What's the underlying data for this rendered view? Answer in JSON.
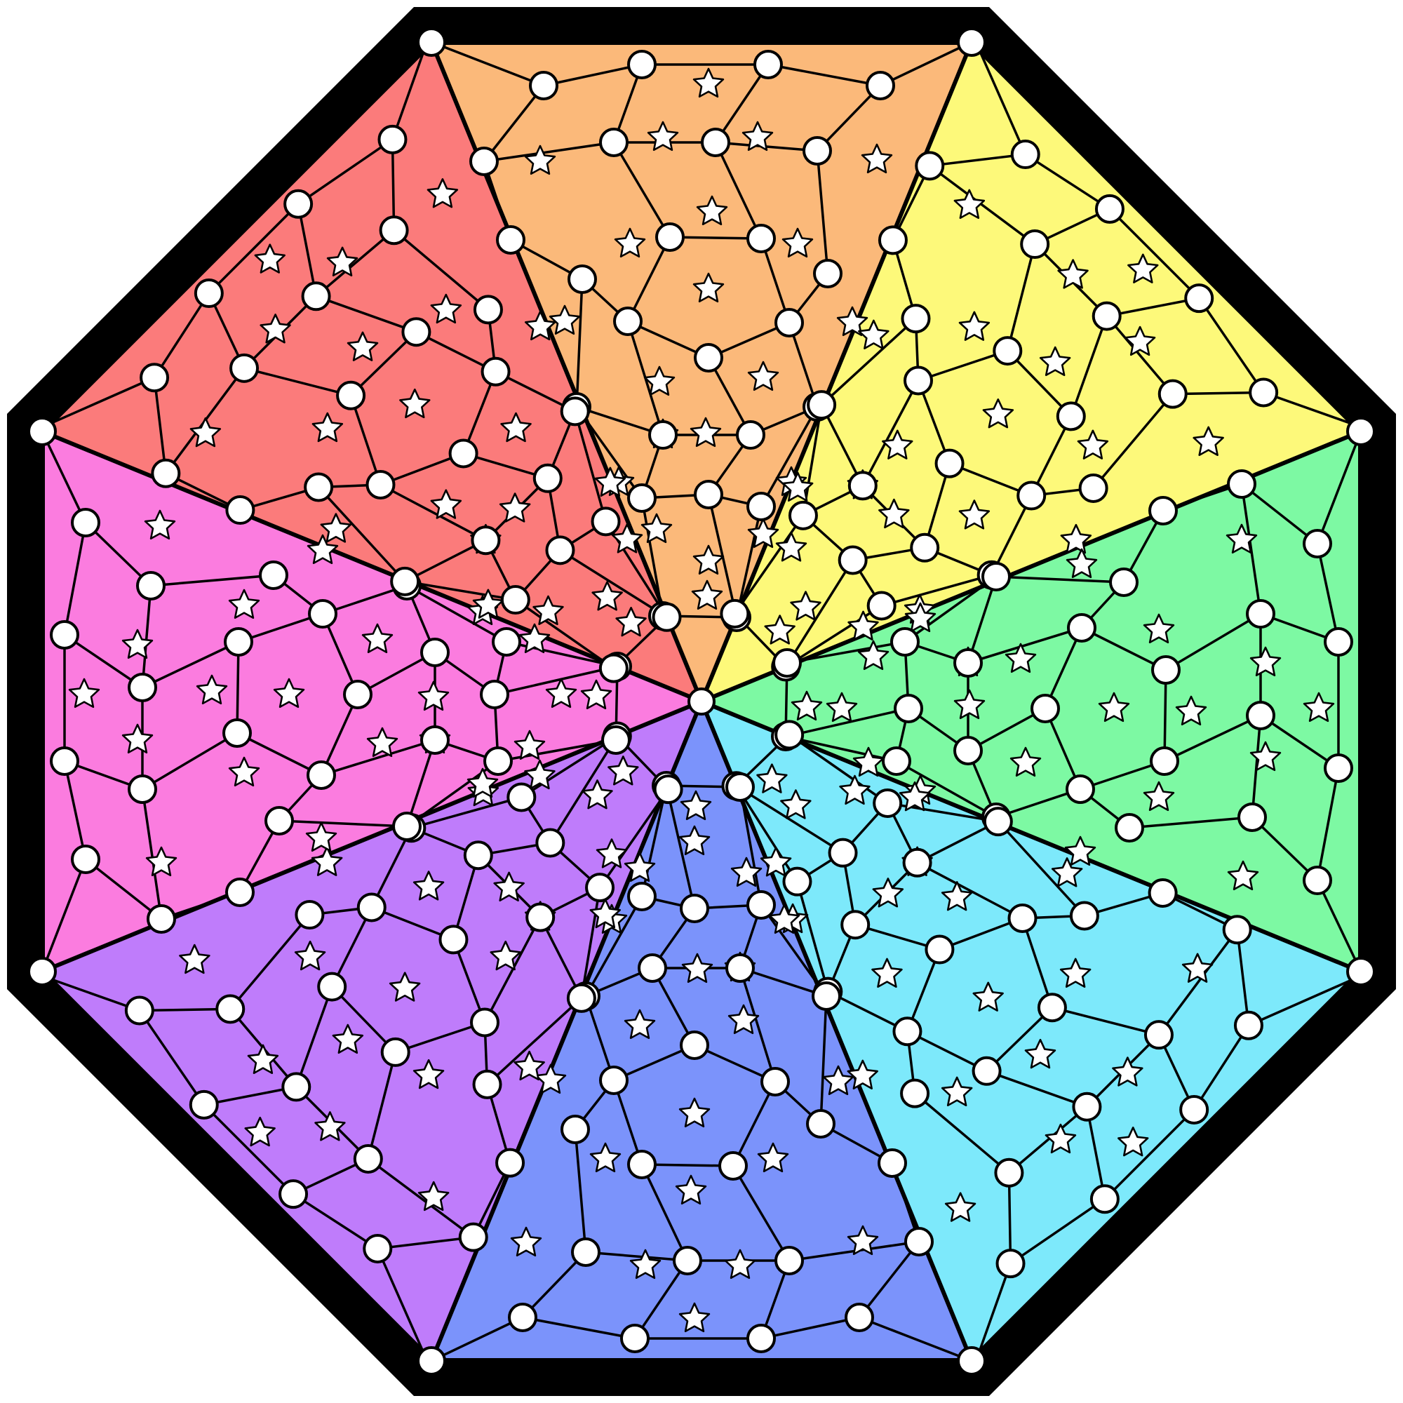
{
  "board": {
    "shape": "octagon",
    "sector_colors": [
      {
        "name": "orange",
        "color": "#FBB97A"
      },
      {
        "name": "yellow",
        "color": "#FDF97A"
      },
      {
        "name": "green",
        "color": "#7DF9A3"
      },
      {
        "name": "cyan",
        "color": "#7DE9FB"
      },
      {
        "name": "blue",
        "color": "#7B93FB"
      },
      {
        "name": "purple",
        "color": "#BF7CFB"
      },
      {
        "name": "pink",
        "color": "#FB7CDF"
      },
      {
        "name": "red",
        "color": "#FB7B7B"
      }
    ],
    "border_color": "#000000",
    "cell_marker_icon": "star-icon",
    "node_icon": "circle-node-icon",
    "sector_count": 8
  }
}
